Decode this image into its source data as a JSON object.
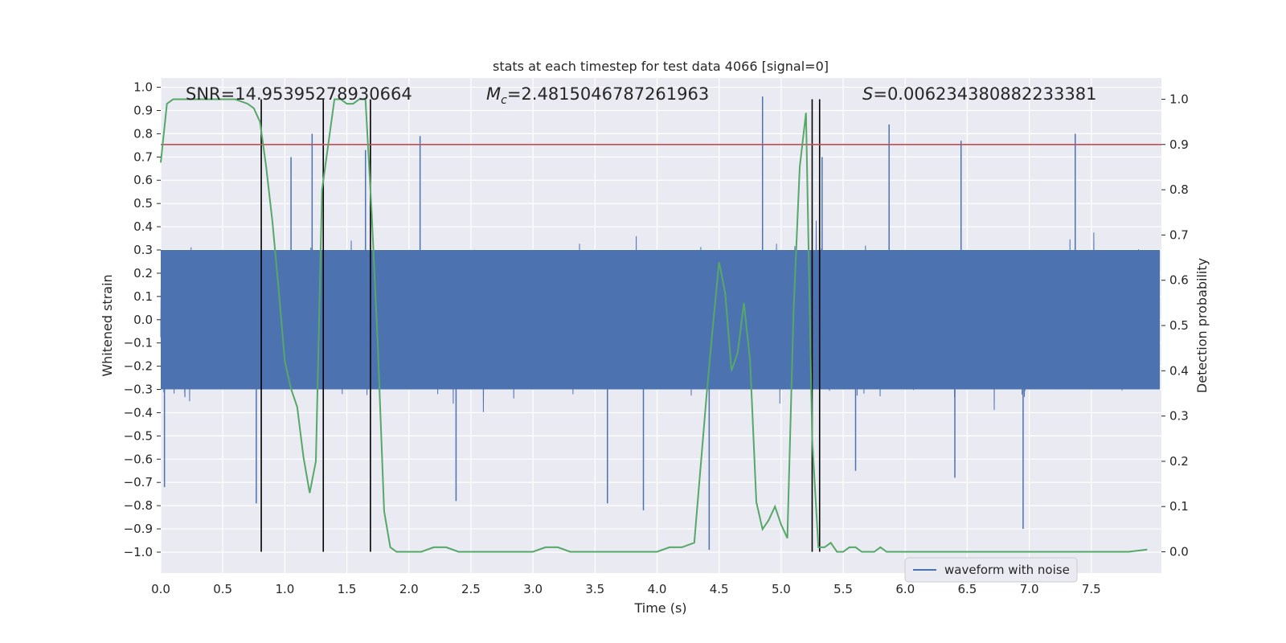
{
  "chart_data": {
    "type": "line",
    "title": "stats at each timestep for test data 4066 [signal=0]",
    "xlabel": "Time (s)",
    "ylabel_left": "Whitened strain",
    "ylabel_right": "Detection probability",
    "xlim": [
      0.0,
      8.0
    ],
    "ylim_left": [
      -1.09,
      1.04
    ],
    "ylim_right": [
      -0.047,
      1.047
    ],
    "x_ticks": [
      0.0,
      0.5,
      1.0,
      1.5,
      2.0,
      2.5,
      3.0,
      3.5,
      4.0,
      4.5,
      5.0,
      5.5,
      6.0,
      6.5,
      7.0,
      7.5
    ],
    "x_tick_labels": [
      "0.0",
      "0.5",
      "1.0",
      "1.5",
      "2.0",
      "2.5",
      "3.0",
      "3.5",
      "4.0",
      "4.5",
      "5.0",
      "5.5",
      "6.0",
      "6.5",
      "7.0",
      "7.5"
    ],
    "y_left_ticks": [
      1.0,
      0.9,
      0.8,
      0.7,
      0.6,
      0.5,
      0.4,
      0.3,
      0.2,
      0.1,
      0.0,
      -0.1,
      -0.2,
      -0.3,
      -0.4,
      -0.5,
      -0.6,
      -0.7,
      -0.8,
      -0.9,
      -1.0
    ],
    "y_left_tick_labels": [
      "1.0",
      "0.9",
      "0.8",
      "0.7",
      "0.6",
      "0.5",
      "0.4",
      "0.3",
      "0.2",
      "0.1",
      "0.0",
      "−0.1",
      "−0.2",
      "−0.3",
      "−0.4",
      "−0.5",
      "−0.6",
      "−0.7",
      "−0.8",
      "−0.9",
      "−1.0"
    ],
    "y_right_ticks": [
      1.0,
      0.9,
      0.8,
      0.7,
      0.6,
      0.5,
      0.4,
      0.3,
      0.2,
      0.1,
      0.0
    ],
    "y_right_tick_labels": [
      "1.0",
      "0.9",
      "0.8",
      "0.7",
      "0.6",
      "0.5",
      "0.4",
      "0.3",
      "0.2",
      "0.1",
      "0.0"
    ],
    "annotations": {
      "snr": "SNR=14.95395278930664",
      "mc_symbol": "M",
      "mc_sub": "c",
      "mc_value": "=2.4815046787261963",
      "s_symbol": "S",
      "s_value": "=0.006234380882233381"
    },
    "threshold": {
      "value": 0.9,
      "axis": "right",
      "color": "#c44e52"
    },
    "vertical_markers": [
      0.81,
      1.31,
      1.69,
      5.25,
      5.31
    ],
    "waveform": {
      "name": "waveform with noise",
      "color": "#4c72b0",
      "typical_amplitude": 0.32,
      "spikes": [
        {
          "t": 0.03,
          "y": -0.72
        },
        {
          "t": 0.77,
          "y": -0.79
        },
        {
          "t": 1.05,
          "y": 0.7
        },
        {
          "t": 1.22,
          "y": 0.8
        },
        {
          "t": 1.65,
          "y": 0.73
        },
        {
          "t": 2.09,
          "y": 0.79
        },
        {
          "t": 2.38,
          "y": -0.78
        },
        {
          "t": 3.89,
          "y": -0.82
        },
        {
          "t": 3.6,
          "y": -0.79
        },
        {
          "t": 4.42,
          "y": -0.99
        },
        {
          "t": 4.85,
          "y": 0.96
        },
        {
          "t": 5.33,
          "y": 0.7
        },
        {
          "t": 5.87,
          "y": 0.84
        },
        {
          "t": 6.95,
          "y": -0.9
        },
        {
          "t": 7.37,
          "y": 0.8
        },
        {
          "t": 5.6,
          "y": -0.65
        },
        {
          "t": 6.45,
          "y": 0.77
        },
        {
          "t": 6.4,
          "y": -0.68
        }
      ]
    },
    "probability": {
      "color": "#55a868",
      "x": [
        0.0,
        0.05,
        0.1,
        0.2,
        0.3,
        0.4,
        0.5,
        0.6,
        0.7,
        0.75,
        0.8,
        0.85,
        0.9,
        0.95,
        1.0,
        1.05,
        1.1,
        1.15,
        1.2,
        1.25,
        1.3,
        1.35,
        1.4,
        1.45,
        1.5,
        1.55,
        1.6,
        1.65,
        1.7,
        1.75,
        1.8,
        1.85,
        1.9,
        1.95,
        2.0,
        2.1,
        2.2,
        2.3,
        2.4,
        2.5,
        2.6,
        2.7,
        2.8,
        2.9,
        3.0,
        3.1,
        3.2,
        3.3,
        3.4,
        3.5,
        3.6,
        3.7,
        3.8,
        3.9,
        4.0,
        4.1,
        4.2,
        4.3,
        4.4,
        4.45,
        4.5,
        4.55,
        4.6,
        4.65,
        4.7,
        4.75,
        4.8,
        4.85,
        4.9,
        4.95,
        5.0,
        5.05,
        5.1,
        5.15,
        5.2,
        5.25,
        5.3,
        5.35,
        5.4,
        5.45,
        5.5,
        5.55,
        5.6,
        5.65,
        5.7,
        5.75,
        5.8,
        5.85,
        5.9,
        5.95,
        6.0,
        6.2,
        6.5,
        6.8,
        7.0,
        7.2,
        7.4,
        7.6,
        7.8,
        7.95
      ],
      "y": [
        0.86,
        0.99,
        1.0,
        1.0,
        1.0,
        1.0,
        1.0,
        1.0,
        0.99,
        0.98,
        0.95,
        0.85,
        0.73,
        0.58,
        0.42,
        0.36,
        0.32,
        0.21,
        0.13,
        0.2,
        0.8,
        0.9,
        1.0,
        1.0,
        0.99,
        0.99,
        1.0,
        1.0,
        0.75,
        0.45,
        0.09,
        0.01,
        0.0,
        0.0,
        0.0,
        0.0,
        0.01,
        0.01,
        0.0,
        0.0,
        0.0,
        0.0,
        0.0,
        0.0,
        0.0,
        0.01,
        0.01,
        0.0,
        0.0,
        0.0,
        0.0,
        0.0,
        0.0,
        0.0,
        0.0,
        0.01,
        0.01,
        0.02,
        0.35,
        0.5,
        0.64,
        0.57,
        0.4,
        0.44,
        0.55,
        0.42,
        0.11,
        0.05,
        0.07,
        0.1,
        0.06,
        0.03,
        0.53,
        0.85,
        0.97,
        0.25,
        0.01,
        0.01,
        0.02,
        0.0,
        0.0,
        0.01,
        0.01,
        0.0,
        0.0,
        0.0,
        0.01,
        0.0,
        0.0,
        0.0,
        0.0,
        0.0,
        0.0,
        0.0,
        0.0,
        0.0,
        0.0,
        0.0,
        0.0,
        0.005
      ]
    }
  }
}
